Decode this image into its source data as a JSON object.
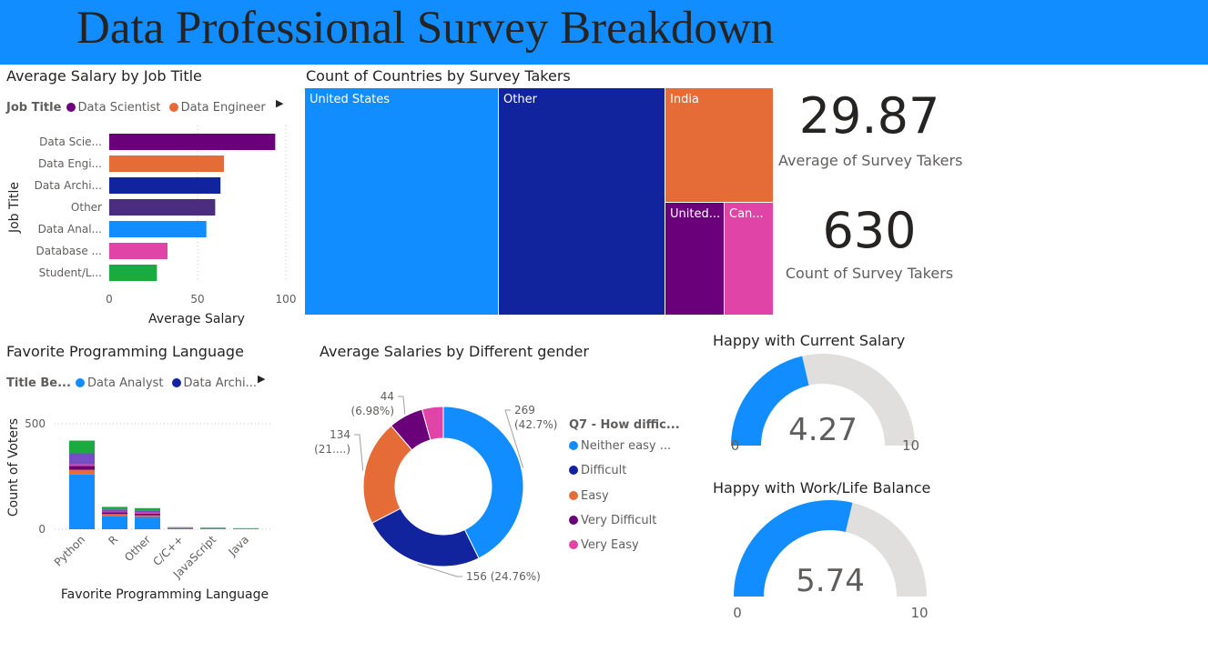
{
  "page": {
    "title": "Data Professional Survey Breakdown"
  },
  "colors": {
    "banner": "#118DFF",
    "blue": "#118DFF",
    "navy": "#12239E",
    "orange": "#E66C37",
    "purple": "#6B007B",
    "pink": "#E044A7",
    "darkpurple": "#744EC2",
    "green": "#1AAB40",
    "gauge_bg": "#E1DFDD"
  },
  "salary_by_job": {
    "title": "Average Salary by Job Title",
    "legend_title": "Job Title",
    "legend": [
      {
        "label": "Data Scientist",
        "color": "#6B007B"
      },
      {
        "label": "Data Engineer",
        "color": "#E66C37"
      }
    ],
    "chart_data": {
      "type": "bar",
      "orientation": "horizontal",
      "categories": [
        "Data Scie...",
        "Data Engi...",
        "Data Archi...",
        "Other",
        "Data Anal...",
        "Database ...",
        "Student/L..."
      ],
      "values": [
        94,
        65,
        63,
        60,
        55,
        33,
        27
      ],
      "colors": [
        "#6B007B",
        "#E66C37",
        "#12239E",
        "#4B2D7F",
        "#118DFF",
        "#E044A7",
        "#1AAB40"
      ],
      "xlabel": "Average Salary",
      "ylabel": "Job Title",
      "xlim": [
        0,
        100
      ],
      "ticks": [
        "0",
        "50",
        "100"
      ]
    }
  },
  "countries": {
    "title": "Count of Countries by Survey Takers",
    "chart_data": {
      "type": "treemap",
      "items": [
        {
          "label": "United States",
          "value": 258,
          "color": "#118DFF"
        },
        {
          "label": "Other",
          "value": 223,
          "color": "#12239E"
        },
        {
          "label": "India",
          "value": 74,
          "color": "#E66C37"
        },
        {
          "label": "United...",
          "value": 40,
          "color": "#6B007B"
        },
        {
          "label": "Can...",
          "value": 35,
          "color": "#E044A7"
        }
      ]
    }
  },
  "card_avg": {
    "value": "29.87",
    "label": "Average of Survey Takers"
  },
  "card_count": {
    "value": "630",
    "label": "Count of Survey Takers"
  },
  "languages": {
    "title": "Favorite Programming Language",
    "legend_title": "Title Be...",
    "legend": [
      {
        "label": "Data Analyst",
        "color": "#118DFF"
      },
      {
        "label": "Data Archi...",
        "color": "#12239E"
      }
    ],
    "chart_data": {
      "type": "bar",
      "stacked": true,
      "categories": [
        "Python",
        "R",
        "Other",
        "C/C++",
        "JavaScript",
        "Java"
      ],
      "series": [
        {
          "color": "#118DFF",
          "values": [
            260,
            62,
            58,
            5,
            3,
            2
          ]
        },
        {
          "color": "#E66C37",
          "values": [
            22,
            10,
            8,
            1,
            1,
            1
          ]
        },
        {
          "color": "#6B007B",
          "values": [
            18,
            8,
            8,
            1,
            1,
            0
          ]
        },
        {
          "color": "#E044A7",
          "values": [
            8,
            4,
            4,
            0,
            0,
            0
          ]
        },
        {
          "color": "#744EC2",
          "values": [
            52,
            10,
            10,
            1,
            1,
            1
          ]
        },
        {
          "color": "#1AAB40",
          "values": [
            60,
            12,
            12,
            2,
            2,
            1
          ]
        }
      ],
      "xlabel": "Favorite Programming Language",
      "ylabel": "Count of Voters",
      "ylim": [
        0,
        500
      ],
      "ticks": [
        "0",
        "500"
      ]
    }
  },
  "gender": {
    "title": "Average Salaries by Different gender",
    "legend_title": "Q7 - How diffic...",
    "chart_data": {
      "type": "donut",
      "slices": [
        {
          "label": "Neither easy ...",
          "value": 269,
          "text": "269",
          "pct": "(42.7%)",
          "color": "#118DFF"
        },
        {
          "label": "Difficult",
          "value": 156,
          "text": "156 (24.76%)",
          "pct": "",
          "color": "#12239E"
        },
        {
          "label": "Easy",
          "value": 134,
          "text": "134",
          "pct": "(21....)",
          "color": "#E66C37"
        },
        {
          "label": "Very Difficult",
          "value": 44,
          "text": "44",
          "pct": "(6.98%)",
          "color": "#6B007B"
        },
        {
          "label": "Very Easy",
          "value": 27,
          "text": "",
          "pct": "",
          "color": "#E044A7"
        }
      ]
    }
  },
  "gauge_salary": {
    "title": "Happy with Current Salary",
    "chart_data": {
      "type": "gauge",
      "value": 4.27,
      "min": 0,
      "max": 10
    },
    "value_text": "4.27",
    "min_text": "0",
    "max_text": "10"
  },
  "gauge_balance": {
    "title": "Happy with Work/Life Balance",
    "chart_data": {
      "type": "gauge",
      "value": 5.74,
      "min": 0,
      "max": 10
    },
    "value_text": "5.74",
    "min_text": "0",
    "max_text": "10"
  }
}
